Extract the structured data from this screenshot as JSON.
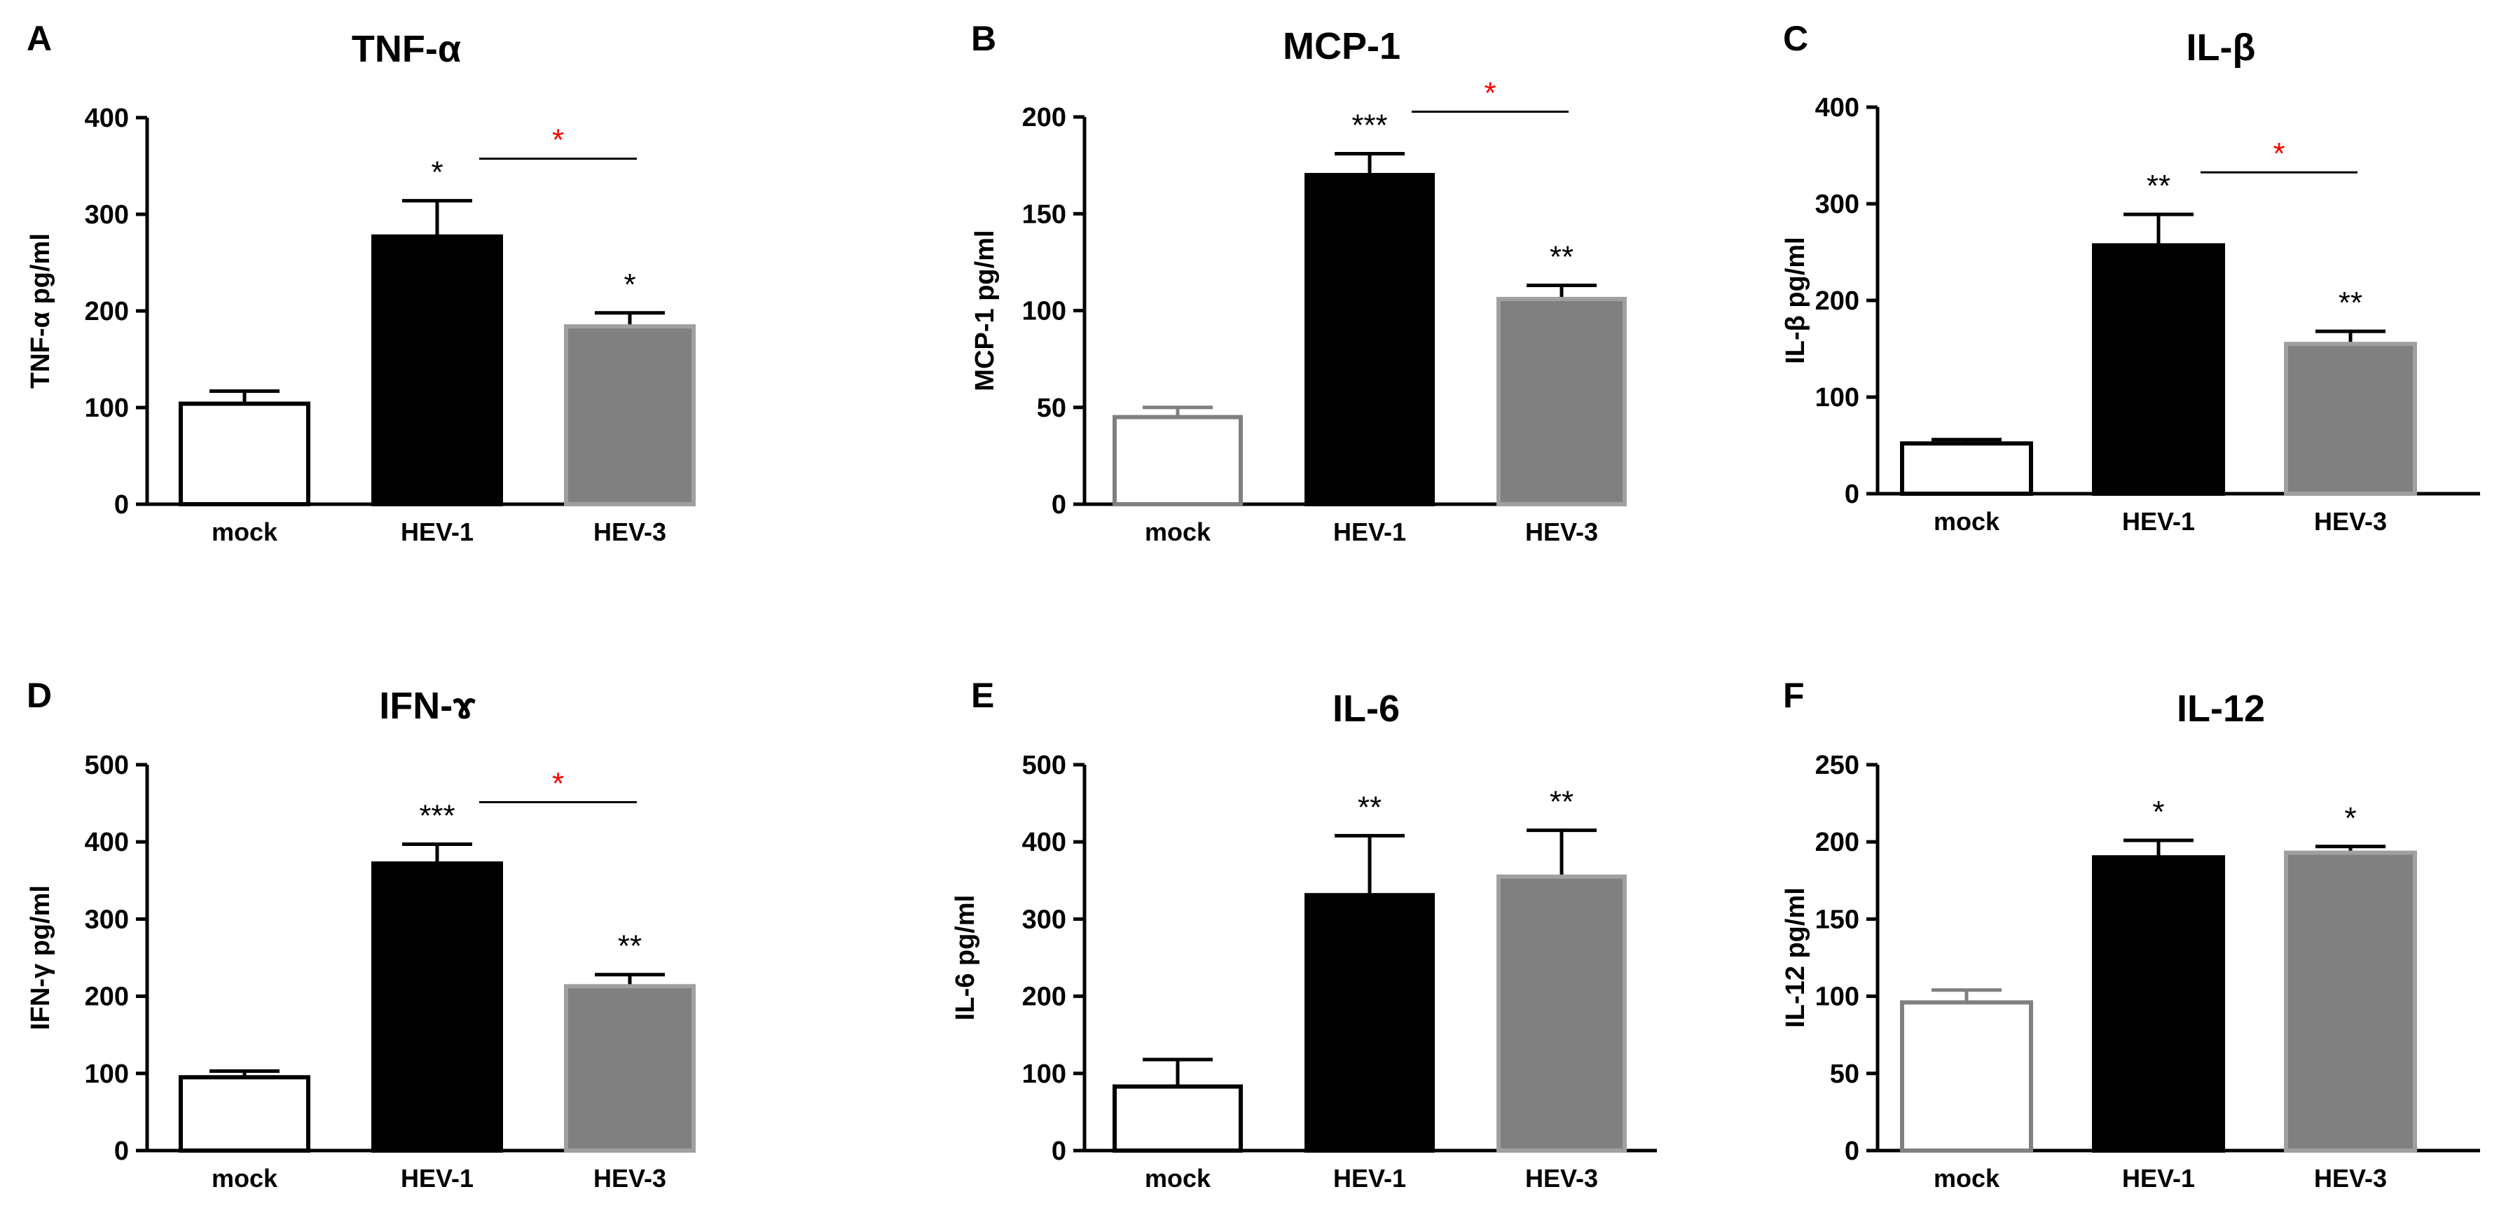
{
  "figure": {
    "panels_count": 6
  },
  "colors": {
    "mock_fill": "#ffffff",
    "mock_edge_dark": "#000000",
    "mock_edge_gray": "#808080",
    "hev1_fill": "#000000",
    "hev3_fill": "#808080",
    "axis": "#000000",
    "star_black": "#000000",
    "star_red": "#ff0000"
  },
  "chart_data": [
    {
      "panel": "A",
      "type": "bar",
      "title": "TNF-α",
      "ylabel": "TNF-α pg/ml",
      "categories": [
        "mock",
        "HEV-1",
        "HEV-3"
      ],
      "values": [
        104,
        277,
        184
      ],
      "errors": [
        13,
        37,
        14
      ],
      "ylim": [
        0,
        400
      ],
      "yticks": [
        0,
        100,
        200,
        300,
        400
      ],
      "significance": [
        "",
        "*",
        "*"
      ],
      "comparison": {
        "from": "HEV-1",
        "to": "HEV-3",
        "label": "*"
      },
      "mock_edge": "dark"
    },
    {
      "panel": "B",
      "type": "bar",
      "title": "MCP-1",
      "ylabel": "MCP-1  pg/ml",
      "categories": [
        "mock",
        "HEV-1",
        "HEV-3"
      ],
      "values": [
        45,
        170,
        106
      ],
      "errors": [
        5,
        11,
        7
      ],
      "ylim": [
        0,
        200
      ],
      "yticks": [
        0,
        50,
        100,
        150,
        200
      ],
      "significance": [
        "",
        "***",
        "**"
      ],
      "comparison": {
        "from": "HEV-1",
        "to": "HEV-3",
        "label": "*"
      },
      "mock_edge": "gray"
    },
    {
      "panel": "C",
      "type": "bar",
      "title": "IL-β",
      "ylabel": "IL-β pg/ml",
      "categories": [
        "mock",
        "HEV-1",
        "HEV-3"
      ],
      "values": [
        52,
        257,
        155
      ],
      "errors": [
        4,
        32,
        13
      ],
      "ylim": [
        0,
        400
      ],
      "yticks": [
        0,
        100,
        200,
        300,
        400
      ],
      "significance": [
        "",
        "**",
        "**"
      ],
      "comparison": {
        "from": "HEV-1",
        "to": "HEV-3",
        "label": "*"
      },
      "mock_edge": "dark"
    },
    {
      "panel": "D",
      "type": "bar",
      "title": "IFN-ɤ",
      "ylabel": "IFN-γ  pg/ml",
      "categories": [
        "mock",
        "HEV-1",
        "HEV-3"
      ],
      "values": [
        95,
        372,
        213
      ],
      "errors": [
        8,
        25,
        15
      ],
      "ylim": [
        0,
        500
      ],
      "yticks": [
        0,
        100,
        200,
        300,
        400,
        500
      ],
      "significance": [
        "",
        "***",
        "**"
      ],
      "comparison": {
        "from": "HEV-1",
        "to": "HEV-3",
        "label": "*"
      },
      "mock_edge": "dark"
    },
    {
      "panel": "E",
      "type": "bar",
      "title": "IL-6",
      "ylabel": "IL-6 pg/ml",
      "categories": [
        "mock",
        "HEV-1",
        "HEV-3"
      ],
      "values": [
        83,
        331,
        355
      ],
      "errors": [
        35,
        77,
        60
      ],
      "ylim": [
        0,
        500
      ],
      "yticks": [
        0,
        100,
        200,
        300,
        400,
        500
      ],
      "significance": [
        "",
        "**",
        "**"
      ],
      "comparison": null,
      "mock_edge": "dark"
    },
    {
      "panel": "F",
      "type": "bar",
      "title": "IL-12",
      "ylabel": "IL-12 pg/ml",
      "categories": [
        "mock",
        "HEV-1",
        "HEV-3"
      ],
      "values": [
        96,
        190,
        193
      ],
      "errors": [
        8,
        11,
        4
      ],
      "ylim": [
        0,
        250
      ],
      "yticks": [
        0,
        50,
        100,
        150,
        200,
        250
      ],
      "significance": [
        "",
        "*",
        "*"
      ],
      "comparison": null,
      "mock_edge": "gray"
    }
  ]
}
